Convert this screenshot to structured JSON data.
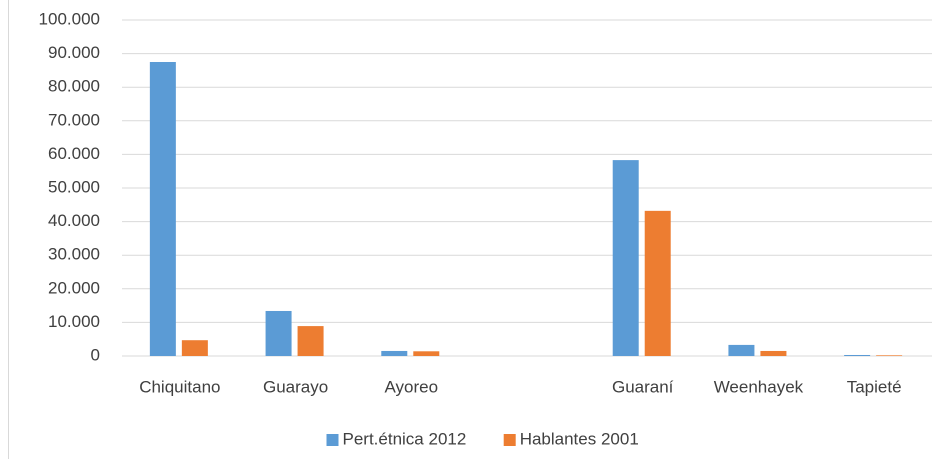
{
  "chart_data": {
    "type": "bar",
    "categories": [
      "Chiquitano",
      "Guarayo",
      "Ayoreo",
      null,
      "Guaraní",
      "Weenhayek",
      "Tapieté"
    ],
    "series": [
      {
        "name": "Pert.étnica 2012",
        "color": "#5b9bd5",
        "values": [
          87500,
          13400,
          1500,
          null,
          58300,
          3300,
          300
        ]
      },
      {
        "name": "Hablantes 2001",
        "color": "#ed7d31",
        "values": [
          4700,
          8900,
          1400,
          null,
          43200,
          1500,
          200
        ]
      }
    ],
    "ylim": [
      0,
      100000
    ],
    "yticks": [
      0,
      {
        "value": 10000,
        "label": "10.000"
      },
      {
        "value": 20000,
        "label": "20.000"
      },
      {
        "value": 30000,
        "label": "30.000"
      },
      {
        "value": 40000,
        "label": "40.000"
      },
      {
        "value": 50000,
        "label": "50.000"
      },
      {
        "value": 60000,
        "label": "60.000"
      },
      {
        "value": 70000,
        "label": "70.000"
      },
      {
        "value": 80000,
        "label": "80.000"
      },
      {
        "value": 90000,
        "label": "90.000"
      },
      {
        "value": 100000,
        "label": "100.000"
      }
    ],
    "grid": true,
    "legend": "bottom"
  }
}
